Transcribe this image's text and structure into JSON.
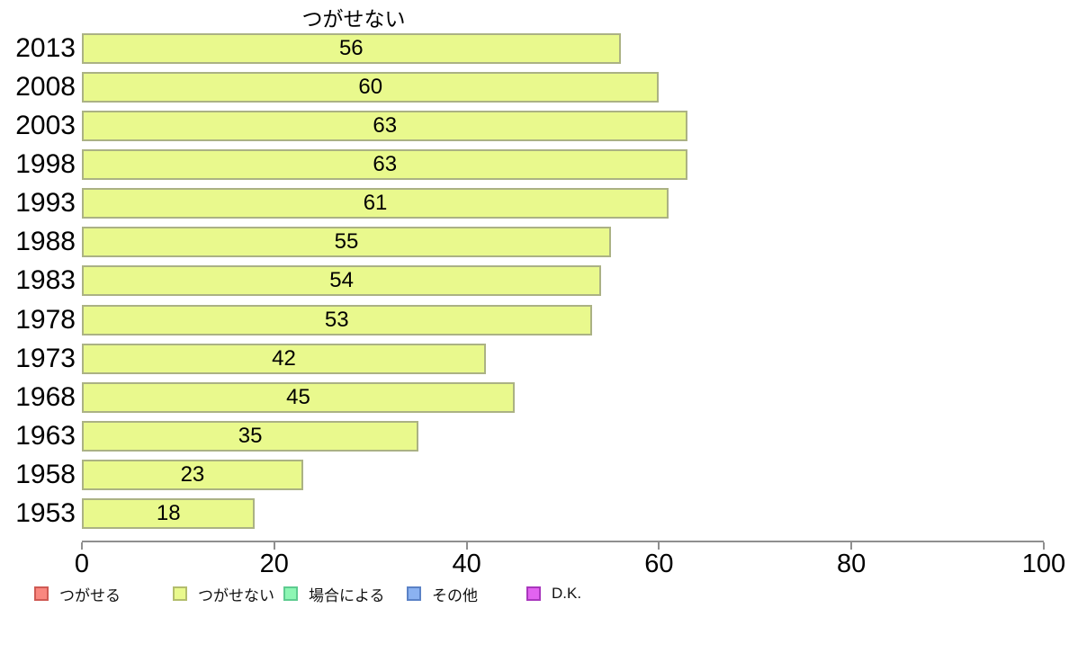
{
  "chart_data": {
    "type": "bar",
    "orientation": "horizontal",
    "title": "つがせない",
    "series_name": "つがせない",
    "categories": [
      "2013",
      "2008",
      "2003",
      "1998",
      "1993",
      "1988",
      "1983",
      "1978",
      "1973",
      "1968",
      "1963",
      "1958",
      "1953"
    ],
    "values": [
      56,
      60,
      63,
      63,
      61,
      55,
      54,
      53,
      42,
      45,
      35,
      23,
      18
    ],
    "value_labels_shown": true,
    "xlabel": "",
    "ylabel": "",
    "xlim": [
      0,
      100
    ],
    "x_ticks": [
      0,
      20,
      40,
      60,
      80,
      100
    ],
    "grid": false,
    "legend_position": "bottom",
    "colors": {
      "bar_fill": "#e9f98d",
      "bar_border": "#abb284",
      "axis": "#8f8f8f",
      "text": "#000000"
    },
    "legend": [
      {
        "label": "つがせる",
        "fill": "#f9877f",
        "border": "#cf5a54"
      },
      {
        "label": "つがせない",
        "fill": "#e9f98d",
        "border": "#b3bd6d"
      },
      {
        "label": "場合による",
        "fill": "#8df6b4",
        "border": "#5ecb90"
      },
      {
        "label": "その他",
        "fill": "#8bb2f1",
        "border": "#5b82c6"
      },
      {
        "label": "D.K.",
        "fill": "#e263f0",
        "border": "#a937bd"
      }
    ]
  }
}
